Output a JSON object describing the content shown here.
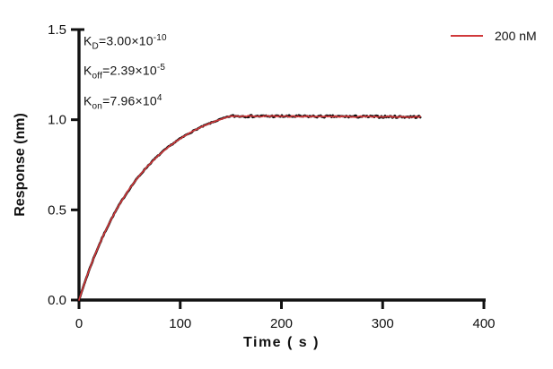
{
  "chart_data": {
    "type": "line",
    "title": "",
    "xlabel": "Time ( s )",
    "ylabel": "Response (nm)",
    "xlim": [
      0,
      400
    ],
    "ylim": [
      0,
      1.5
    ],
    "x_ticks": [
      "0",
      "100",
      "200",
      "300",
      "400"
    ],
    "y_ticks": [
      "0.0",
      "0.5",
      "1.0",
      "1.5"
    ],
    "grid": false,
    "axis_color": "#111111",
    "legend": {
      "position": "top-right",
      "entries": [
        {
          "label": "200 nM",
          "color": "#d0393b"
        }
      ]
    },
    "annotations": [
      {
        "base": "K",
        "sub": "D",
        "eq": "=3.00×10",
        "sup": "-10"
      },
      {
        "base": "K",
        "sub": "off",
        "eq": "=2.39×10",
        "sup": "-5"
      },
      {
        "base": "K",
        "sub": "on",
        "eq": "=7.96×10",
        "sup": "4"
      }
    ],
    "series": [
      {
        "name": "200 nM",
        "model": "association-dissociation kinetic fit",
        "KD_M": 3e-10,
        "koff_per_s": 2.39e-05,
        "kon_per_M_s": 79600,
        "concentration_nM": 200,
        "rmax_fit": 1.123,
        "association_end_s": 150,
        "end_s": 338,
        "plateau_response": 1.02,
        "raw_color": "#0d0d0d",
        "fit_color": "#d0393b",
        "key_points": [
          {
            "t": 0,
            "R": 0.0
          },
          {
            "t": 50,
            "R": 0.62
          },
          {
            "t": 100,
            "R": 0.89
          },
          {
            "t": 150,
            "R": 1.02
          },
          {
            "t": 250,
            "R": 1.02
          },
          {
            "t": 338,
            "R": 1.015
          }
        ]
      }
    ]
  }
}
